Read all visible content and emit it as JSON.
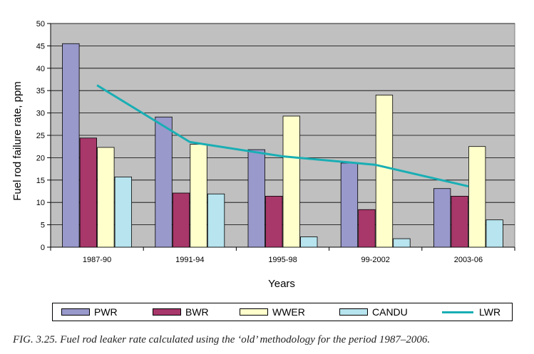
{
  "chart_data": {
    "type": "bar",
    "categories": [
      "1987-90",
      "1991-94",
      "1995-98",
      "99-2002",
      "2003-06"
    ],
    "series": [
      {
        "name": "PWR",
        "type": "bar",
        "color": "#9999cc",
        "values": [
          45.5,
          29.1,
          21.8,
          18.8,
          13.1
        ]
      },
      {
        "name": "BWR",
        "type": "bar",
        "color": "#a8376a",
        "values": [
          24.4,
          12.1,
          11.4,
          8.4,
          11.4
        ]
      },
      {
        "name": "WWER",
        "type": "bar",
        "color": "#ffffcc",
        "values": [
          22.3,
          23.0,
          29.3,
          34.0,
          22.5
        ]
      },
      {
        "name": "CANDU",
        "type": "bar",
        "color": "#b7e4ee",
        "values": [
          15.7,
          11.9,
          2.3,
          1.9,
          6.1
        ]
      },
      {
        "name": "LWR",
        "type": "line",
        "color": "#19aeb4",
        "values": [
          36.2,
          23.5,
          20.3,
          18.4,
          13.6
        ]
      }
    ],
    "xlabel": "Years",
    "ylabel": "Fuel rod failure rate, ppm",
    "ylim": [
      0,
      50
    ],
    "yticks": [
      0,
      5,
      10,
      15,
      20,
      25,
      30,
      35,
      40,
      45,
      50
    ],
    "grid": true,
    "legend_position": "bottom",
    "plot_background": "#c0c0c0"
  },
  "caption": "FIG. 3.25.  Fuel rod leaker rate calculated using the ‘old’ methodology for the period 1987–2006."
}
